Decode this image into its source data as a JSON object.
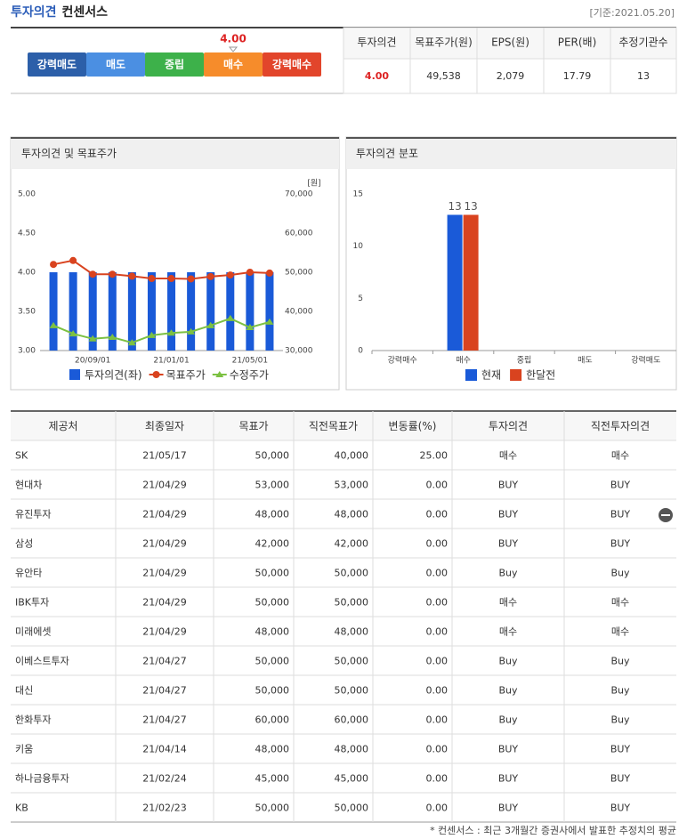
{
  "header": {
    "title": "투자의견",
    "subtitle": "컨센서스",
    "date": "[기준:2021.05.20]"
  },
  "consensus": {
    "scale": [
      "강력매도",
      "매도",
      "중립",
      "매수",
      "강력매수"
    ],
    "value": "4.00",
    "table": {
      "headers": [
        "투자의견",
        "목표주가(원)",
        "EPS(원)",
        "PER(배)",
        "추정기관수"
      ],
      "values": [
        "4.00",
        "49,538",
        "2,079",
        "17.79",
        "13"
      ]
    }
  },
  "chart_data": [
    {
      "type": "combo",
      "title": "투자의견 및 목표주가",
      "y2label": "[원]",
      "categories": [
        null,
        null,
        "20/09/01",
        null,
        null,
        null,
        "21/01/01",
        null,
        null,
        null,
        "21/05/01",
        null
      ],
      "series": [
        {
          "name": "투자의견(좌)",
          "color": "#1a5ad8",
          "type": "bar",
          "values": [
            4,
            4,
            4,
            4,
            4,
            4,
            4,
            4,
            4,
            4,
            4,
            4
          ]
        },
        {
          "name": "목표주가",
          "color": "#d9431f",
          "type": "line",
          "axis": "y2",
          "values": [
            52000,
            53000,
            49500,
            49500,
            49000,
            48400,
            48400,
            48300,
            48900,
            49300,
            50000,
            49800
          ]
        },
        {
          "name": "수정주가",
          "color": "#7cc142",
          "type": "line",
          "axis": "y2",
          "values": [
            36400,
            34300,
            33000,
            33400,
            32000,
            33900,
            34500,
            34800,
            36400,
            38200,
            35900,
            37300
          ]
        }
      ],
      "ylim": [
        3,
        5
      ],
      "yticks": [
        {
          "value": 3,
          "label": "3.00"
        },
        {
          "value": 3.5,
          "label": "3.50"
        },
        {
          "value": 4,
          "label": "4.00"
        },
        {
          "value": 4.5,
          "label": "4.50"
        },
        {
          "value": 5,
          "label": "5.00"
        }
      ],
      "y2lim": [
        30000,
        70000
      ],
      "y2ticks": [
        {
          "value": 30000,
          "label": "30,000"
        },
        {
          "value": 40000,
          "label": "40,000"
        },
        {
          "value": 50000,
          "label": "50,000"
        },
        {
          "value": 60000,
          "label": "60,000"
        },
        {
          "value": 70000,
          "label": "70,000"
        }
      ]
    },
    {
      "type": "bar",
      "title": "투자의견 분포",
      "categories": [
        "강력매수",
        "매수",
        "중립",
        "매도",
        "강력매도"
      ],
      "series": [
        {
          "name": "현재",
          "color": "#1a5ad8",
          "values": [
            0,
            13,
            0,
            0,
            0
          ]
        },
        {
          "name": "한달전",
          "color": "#d9431f",
          "values": [
            0,
            13,
            0,
            0,
            0
          ]
        }
      ],
      "ylim": [
        0,
        15
      ],
      "yticks": [
        0,
        5,
        10,
        15
      ]
    }
  ],
  "table": {
    "headers": [
      "제공처",
      "최종일자",
      "목표가",
      "직전목표가",
      "변동률(%)",
      "투자의견",
      "직전투자의견"
    ],
    "rows": [
      [
        "SK",
        "21/05/17",
        "50,000",
        "40,000",
        "25.00",
        "매수",
        "매수"
      ],
      [
        "현대차",
        "21/04/29",
        "53,000",
        "53,000",
        "0.00",
        "BUY",
        "BUY"
      ],
      [
        "유진투자",
        "21/04/29",
        "48,000",
        "48,000",
        "0.00",
        "BUY",
        "BUY"
      ],
      [
        "삼성",
        "21/04/29",
        "42,000",
        "42,000",
        "0.00",
        "BUY",
        "BUY"
      ],
      [
        "유안타",
        "21/04/29",
        "50,000",
        "50,000",
        "0.00",
        "Buy",
        "Buy"
      ],
      [
        "IBK투자",
        "21/04/29",
        "50,000",
        "50,000",
        "0.00",
        "매수",
        "매수"
      ],
      [
        "미래에셋",
        "21/04/29",
        "48,000",
        "48,000",
        "0.00",
        "매수",
        "매수"
      ],
      [
        "이베스트투자",
        "21/04/27",
        "50,000",
        "50,000",
        "0.00",
        "Buy",
        "Buy"
      ],
      [
        "대신",
        "21/04/27",
        "50,000",
        "50,000",
        "0.00",
        "Buy",
        "Buy"
      ],
      [
        "한화투자",
        "21/04/27",
        "60,000",
        "60,000",
        "0.00",
        "Buy",
        "Buy"
      ],
      [
        "키움",
        "21/04/14",
        "48,000",
        "48,000",
        "0.00",
        "BUY",
        "BUY"
      ],
      [
        "하나금융투자",
        "21/02/24",
        "45,000",
        "45,000",
        "0.00",
        "BUY",
        "BUY"
      ],
      [
        "KB",
        "21/02/23",
        "50,000",
        "50,000",
        "0.00",
        "BUY",
        "BUY"
      ]
    ]
  },
  "footnote": "* 컨센서스 : 최근 3개월간 증권사에서 발표한 추정치의 평균"
}
